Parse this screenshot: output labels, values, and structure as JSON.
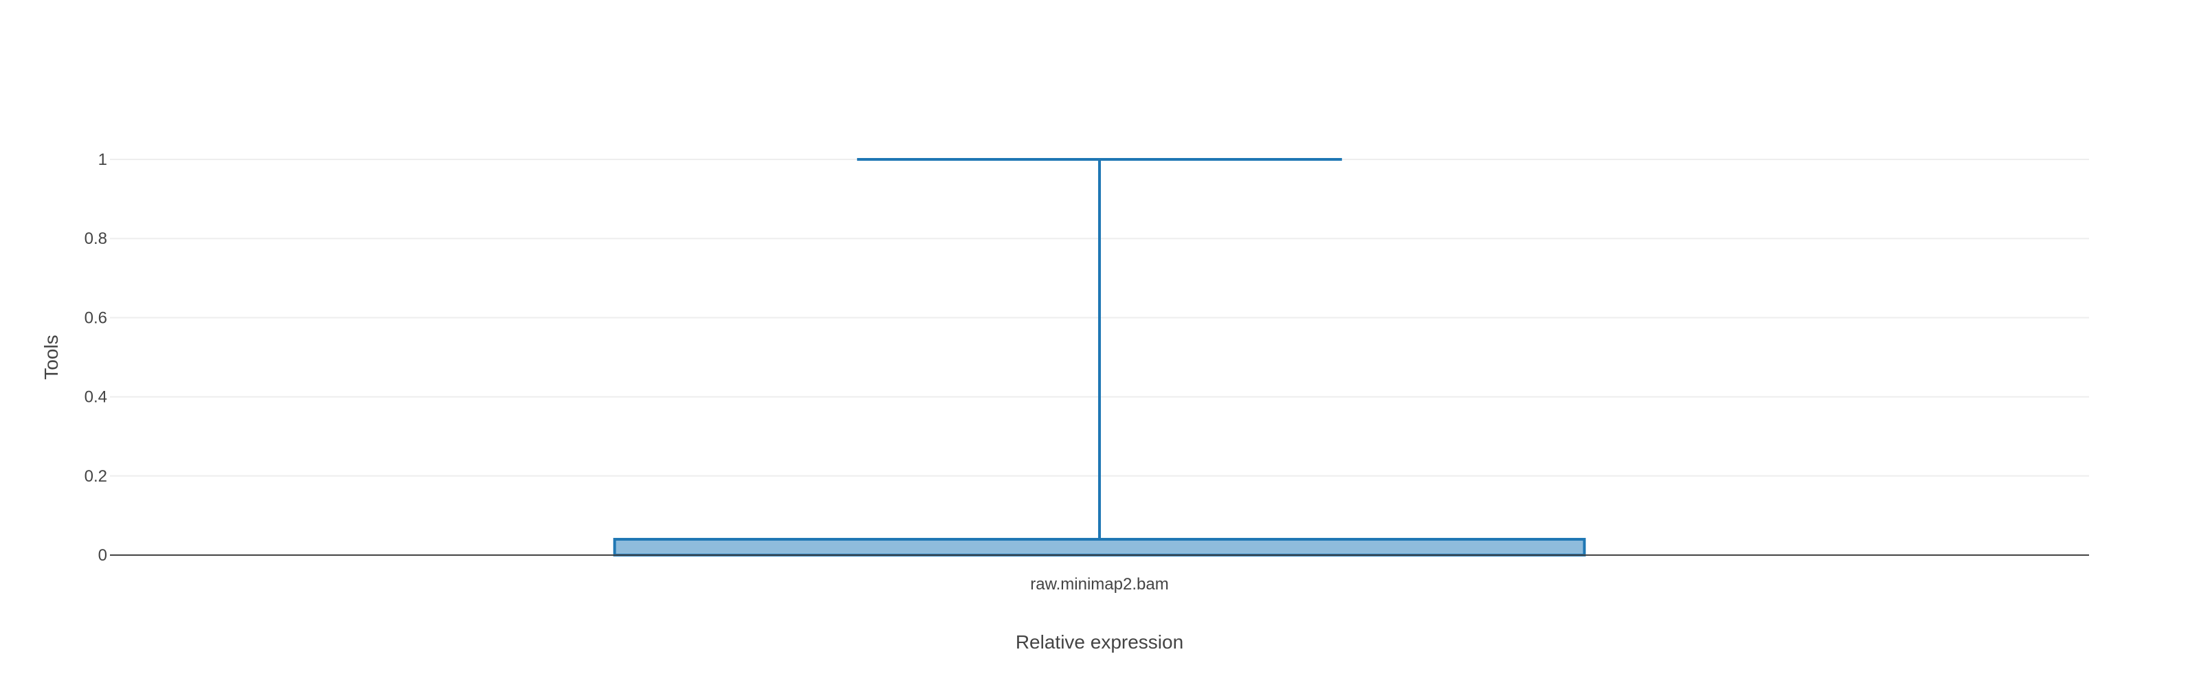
{
  "chart_data": {
    "type": "box",
    "title": "",
    "xlabel": "Relative expression",
    "ylabel": "Tools",
    "ylim": [
      0,
      1
    ],
    "yticks": [
      "0",
      "0.2",
      "0.4",
      "0.6",
      "0.8",
      "1"
    ],
    "categories": [
      "raw.minimap2.bam"
    ],
    "series": [
      {
        "category": "raw.minimap2.bam",
        "min": 0,
        "q1": 0,
        "median": 0,
        "q3": 0.04,
        "max": 1
      }
    ],
    "grid": true,
    "legend": "none",
    "colors": {
      "box_line": "#1f77b4",
      "box_fill": "#8fbcdc",
      "grid": "#eeeeee",
      "axis": "#444444"
    }
  }
}
